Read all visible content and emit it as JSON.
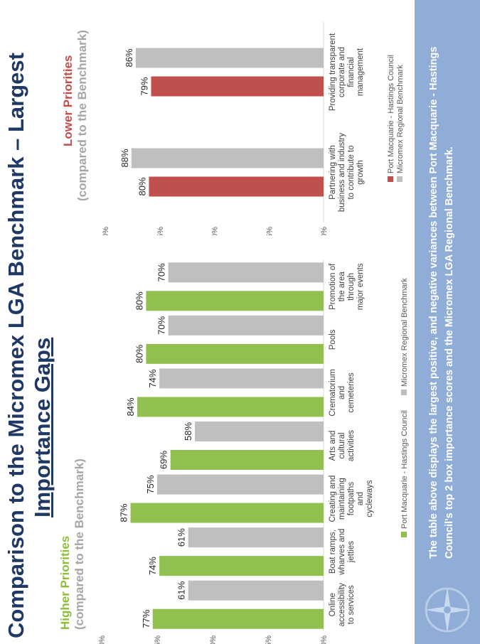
{
  "title": {
    "line1": "Comparison to the Micromex LGA Benchmark – Largest",
    "line2": "Importance Gaps"
  },
  "left_panel": {
    "heading": "Higher Priorities",
    "subheading": "(compared to the Benchmark)"
  },
  "right_panel": {
    "heading": "Lower Priorities",
    "subheading": "(compared to the Benchmark)"
  },
  "footer": {
    "text": "The table above displays the largest positive, and negative variances between Port Macquarie - Hastings Council's top 2 box importance scores and the Micromex LGA Regional Benchmark."
  },
  "colors": {
    "title": "#1f3864",
    "higher_heading": "#8cbe3c",
    "lower_heading": "#c0504d",
    "council_green": "#92c050",
    "council_red": "#c0504d",
    "benchmark_grey": "#bfbfbf",
    "footer_bg": "#8fadd6"
  },
  "chart_data": [
    {
      "type": "bar",
      "categories": [
        "Online accessibility to services",
        "Boat ramps, wharves and jetties",
        "Creating and maintaining footpaths and cycleways",
        "Arts and cultural activities",
        "Crematorium and cemeteries",
        "Pools",
        "Promotion of the area through major events"
      ],
      "category_lines": [
        [
          "Online",
          "accessibility",
          "to services"
        ],
        [
          "Boat ramps,",
          "wharves and",
          "jetties"
        ],
        [
          "Creating and",
          "maintaining",
          "footpaths",
          "and",
          "cycleways"
        ],
        [
          "Arts and",
          "cultural",
          "activities"
        ],
        [
          "Crematorium",
          "and",
          "cemeteries"
        ],
        [
          "Pools"
        ],
        [
          "Promotion of",
          "the area",
          "through",
          "major events"
        ]
      ],
      "series": [
        {
          "name": "Port Macquarie - Hastings Council",
          "values": [
            77,
            74,
            87,
            69,
            84,
            80,
            80
          ],
          "color": "#92c050"
        },
        {
          "name": "Micromex Regional Benchmark",
          "values": [
            61,
            61,
            75,
            58,
            74,
            70,
            70
          ],
          "color": "#bfbfbf"
        }
      ],
      "data_labels": [
        [
          "77%",
          "74%",
          "87%",
          "69%",
          "84%",
          "80%",
          "80%"
        ],
        [
          "61%",
          "61%",
          "75%",
          "58%",
          "74%",
          "70%",
          "70%"
        ]
      ],
      "ylim": [
        0,
        100
      ],
      "yticks": [
        "0%",
        "25%",
        "50%",
        "75%",
        "100%"
      ],
      "legend": "bottom"
    },
    {
      "type": "bar",
      "categories": [
        "Partnering with business and industry to contribute to growth",
        "Providing transparent corporate and financial management"
      ],
      "category_lines": [
        [
          "Partnering with",
          "business and industry",
          "to contribute to",
          "growth"
        ],
        [
          "Providing transparent",
          "corporate and",
          "financial",
          "management"
        ]
      ],
      "series": [
        {
          "name": "Port Macquarie - Hastings Council",
          "values": [
            80,
            79
          ],
          "color": "#c0504d"
        },
        {
          "name": "Micromex Regional Benchmark",
          "values": [
            88,
            86
          ],
          "color": "#bfbfbf"
        }
      ],
      "data_labels": [
        [
          "80%",
          "79%"
        ],
        [
          "88%",
          "86%"
        ]
      ],
      "ylim": [
        0,
        100
      ],
      "yticks": [
        "0%",
        "25%",
        "50%",
        "75%",
        "100%"
      ],
      "legend": "bottom"
    }
  ]
}
